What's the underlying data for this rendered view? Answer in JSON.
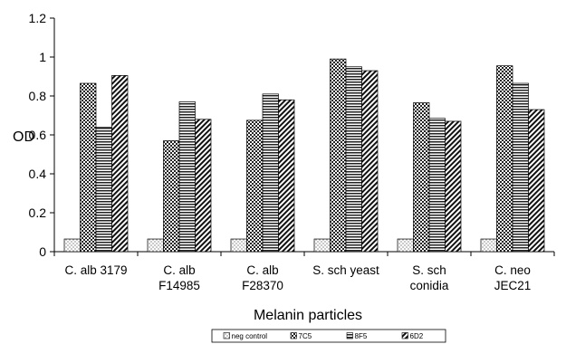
{
  "chart_data": {
    "type": "bar",
    "title": "",
    "xlabel": "Melanin particles",
    "ylabel": "OD",
    "ylim": [
      0,
      1.2
    ],
    "yticks": [
      "0",
      "0.2",
      "0.4",
      "0.6",
      "0.8",
      "1",
      "1.2"
    ],
    "grid": false,
    "legend_position": "bottom",
    "categories": [
      [
        "C. alb 3179"
      ],
      [
        "C. alb",
        "F14985"
      ],
      [
        "C. alb",
        "F28370"
      ],
      [
        "S. sch yeast"
      ],
      [
        "S. sch",
        "conidia"
      ],
      [
        "C. neo",
        "JEC21"
      ]
    ],
    "series": [
      {
        "name": "neg control",
        "pattern": "dots",
        "values": [
          0.065,
          0.065,
          0.065,
          0.065,
          0.065,
          0.065
        ]
      },
      {
        "name": "7C5",
        "pattern": "checker",
        "values": [
          0.865,
          0.57,
          0.675,
          0.99,
          0.765,
          0.955
        ]
      },
      {
        "name": "8F5",
        "pattern": "hlines",
        "values": [
          0.64,
          0.77,
          0.81,
          0.95,
          0.685,
          0.865
        ]
      },
      {
        "name": "6D2",
        "pattern": "diag",
        "values": [
          0.905,
          0.68,
          0.78,
          0.93,
          0.67,
          0.73
        ]
      }
    ]
  }
}
